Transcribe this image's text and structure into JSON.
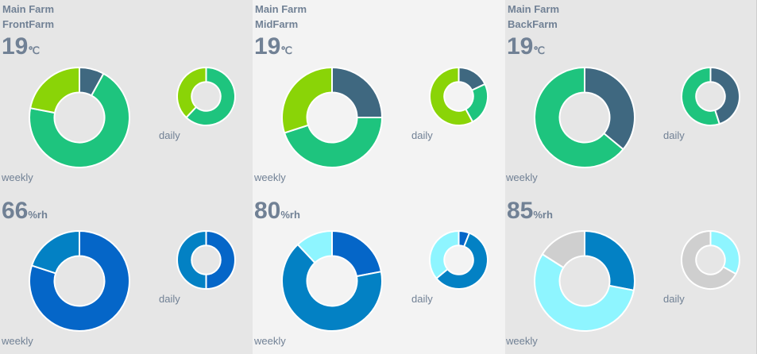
{
  "colors": {
    "temp": [
      "#3f6880",
      "#1ec47e",
      "#8ad407"
    ],
    "humidity": [
      "#0566c8",
      "#0381c4",
      "#8ef5ff",
      "#cfcfcf"
    ]
  },
  "farms": [
    {
      "main": "Main Farm",
      "name": "FrontFarm",
      "temp": {
        "value": "19",
        "unit": "℃"
      },
      "humidity": {
        "value": "66",
        "unit": "%rh"
      },
      "charts": {
        "temp_weekly": {
          "label": "weekly",
          "slices": [
            {
              "v": 8,
              "c": 0
            },
            {
              "v": 70,
              "c": 1
            },
            {
              "v": 22,
              "c": 2
            }
          ]
        },
        "temp_daily": {
          "label": "daily",
          "slices": [
            {
              "v": 62,
              "c": 1
            },
            {
              "v": 38,
              "c": 2
            }
          ]
        },
        "hum_weekly": {
          "label": "weekly",
          "slices": [
            {
              "v": 80,
              "c": 0
            },
            {
              "v": 20,
              "c": 1
            }
          ]
        },
        "hum_daily": {
          "label": "daily",
          "slices": [
            {
              "v": 50,
              "c": 0
            },
            {
              "v": 50,
              "c": 1
            }
          ]
        }
      }
    },
    {
      "main": "Main Farm",
      "name": "MidFarm",
      "temp": {
        "value": "19",
        "unit": "℃"
      },
      "humidity": {
        "value": "80",
        "unit": "%rh"
      },
      "charts": {
        "temp_weekly": {
          "label": "weekly",
          "slices": [
            {
              "v": 25,
              "c": 0
            },
            {
              "v": 45,
              "c": 1
            },
            {
              "v": 30,
              "c": 2
            }
          ]
        },
        "temp_daily": {
          "label": "daily",
          "slices": [
            {
              "v": 18,
              "c": 0
            },
            {
              "v": 24,
              "c": 1
            },
            {
              "v": 58,
              "c": 2
            }
          ]
        },
        "hum_weekly": {
          "label": "weekly",
          "slices": [
            {
              "v": 22,
              "c": 0
            },
            {
              "v": 66,
              "c": 1
            },
            {
              "v": 12,
              "c": 2
            }
          ]
        },
        "hum_daily": {
          "label": "daily",
          "slices": [
            {
              "v": 6,
              "c": 0
            },
            {
              "v": 58,
              "c": 1
            },
            {
              "v": 36,
              "c": 2
            }
          ]
        }
      }
    },
    {
      "main": "Main Farm",
      "name": "BackFarm",
      "temp": {
        "value": "19",
        "unit": "℃"
      },
      "humidity": {
        "value": "85",
        "unit": "%rh"
      },
      "charts": {
        "temp_weekly": {
          "label": "weekly",
          "slices": [
            {
              "v": 36,
              "c": 0
            },
            {
              "v": 64,
              "c": 1
            }
          ]
        },
        "temp_daily": {
          "label": "daily",
          "slices": [
            {
              "v": 45,
              "c": 0
            },
            {
              "v": 55,
              "c": 1
            }
          ]
        },
        "hum_weekly": {
          "label": "weekly",
          "slices": [
            {
              "v": 28,
              "c": 1
            },
            {
              "v": 56,
              "c": 2
            },
            {
              "v": 16,
              "c": 3
            }
          ]
        },
        "hum_daily": {
          "label": "daily",
          "slices": [
            {
              "v": 33,
              "c": 2
            },
            {
              "v": 67,
              "c": 3
            }
          ]
        }
      }
    }
  ]
}
